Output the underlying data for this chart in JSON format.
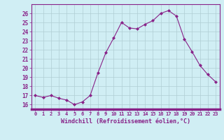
{
  "x": [
    0,
    1,
    2,
    3,
    4,
    5,
    6,
    7,
    8,
    9,
    10,
    11,
    12,
    13,
    14,
    15,
    16,
    17,
    18,
    19,
    20,
    21,
    22,
    23
  ],
  "y": [
    17.0,
    16.8,
    17.0,
    16.7,
    16.5,
    16.0,
    16.3,
    17.0,
    19.5,
    21.7,
    23.3,
    25.0,
    24.4,
    24.3,
    24.8,
    25.2,
    26.0,
    26.3,
    25.7,
    23.2,
    21.8,
    20.3,
    19.3,
    18.5
  ],
  "xlabel": "Windchill (Refroidissement éolien,°C)",
  "ylim": [
    15.5,
    27.0
  ],
  "xlim": [
    -0.5,
    23.5
  ],
  "line_color": "#882288",
  "marker_color": "#882288",
  "bg_color": "#D0EEF4",
  "grid_color": "#B0CDD4",
  "tick_labels": [
    "0",
    "1",
    "2",
    "3",
    "4",
    "5",
    "6",
    "7",
    "8",
    "9",
    "10",
    "11",
    "12",
    "13",
    "14",
    "15",
    "16",
    "17",
    "18",
    "19",
    "20",
    "21",
    "22",
    "23"
  ],
  "yticks": [
    16,
    17,
    18,
    19,
    20,
    21,
    22,
    23,
    24,
    25,
    26
  ],
  "xlabel_color": "#882288",
  "tick_color": "#882288",
  "spine_color": "#882288",
  "axis_bg": "#D0EEF4"
}
